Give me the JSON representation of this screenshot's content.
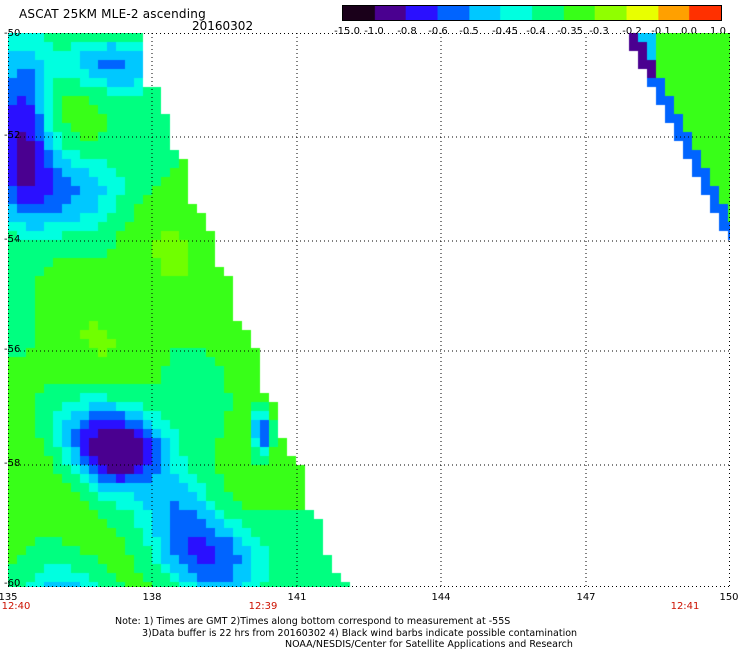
{
  "title": "ASCAT 25KM MLE-2 ascending",
  "date": "20160302",
  "colorbar": {
    "labels": [
      "-15.0",
      "-1.0",
      "-0.8",
      "-0.6",
      "-0.5",
      "-0.45",
      "-0.4",
      "-0.35",
      "-0.3",
      "-0.2",
      "-0.1",
      "0.0",
      "1.0"
    ],
    "colors": [
      "#1a001a",
      "#4a0090",
      "#2a10ff",
      "#0064ff",
      "#00c8ff",
      "#00ffe0",
      "#00ff80",
      "#38ff18",
      "#90ff00",
      "#e8ff00",
      "#ffa000",
      "#ff3000"
    ]
  },
  "map": {
    "lat_labels": [
      "-50",
      "-52",
      "-54",
      "-56",
      "-58",
      "-60"
    ],
    "lon_labels": [
      "135",
      "138",
      "141",
      "144",
      "147",
      "150"
    ],
    "lat_range": [
      -60,
      -50
    ],
    "lon_range": [
      135,
      150
    ],
    "gridlines": true,
    "time_labels": [
      {
        "text": "12:40",
        "lon": 135
      },
      {
        "text": "12:39",
        "lon": 140.2
      },
      {
        "text": "12:41",
        "lon": 149.3
      }
    ]
  },
  "notes": [
    "Note: 1) Times are GMT 2)Times along bottom correspond to measurement at -55S",
    "3)Data buffer is 22 hrs from 20160302 4) Black wind barbs indicate possible contamination",
    "NOAA/NESDIS/Center for Satellite Applications and Research"
  ]
}
